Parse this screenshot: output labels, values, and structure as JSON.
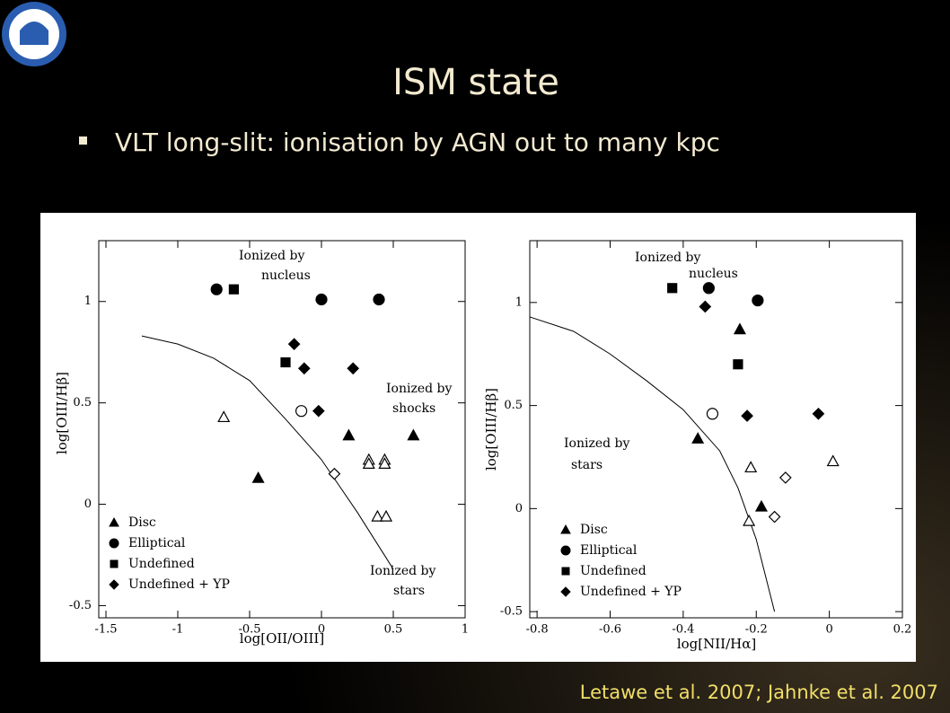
{
  "slide": {
    "title": "ISM state",
    "bullet": "VLT long-slit: ionisation by AGN out to many kpc",
    "citation": "Letawe et al. 2007; Jahnke et al. 2007"
  },
  "chart_data": [
    {
      "type": "scatter",
      "xlabel": "log[OII/OIII]",
      "ylabel": "log[OIII/Hβ]",
      "xlim": [
        -1.55,
        1.0
      ],
      "ylim": [
        -0.56,
        1.3
      ],
      "xticks": [
        -1.5,
        -1,
        -0.5,
        0,
        0.5,
        1
      ],
      "yticks": [
        -0.5,
        0,
        0.5,
        1
      ],
      "annotations": [
        "Ionized by",
        "nucleus",
        "Ionized by",
        "shocks",
        "Ionized by",
        "stars"
      ],
      "curve": {
        "x": [
          -1.25,
          -1.0,
          -0.75,
          -0.5,
          -0.25,
          0,
          0.25,
          0.5
        ],
        "y": [
          0.83,
          0.79,
          0.72,
          0.61,
          0.42,
          0.22,
          -0.04,
          -0.32
        ]
      },
      "series": [
        {
          "name": "Disc",
          "marker": "triangle",
          "filled": true,
          "color": "#000000",
          "x": [
            -0.44,
            0.19,
            0.64
          ],
          "values": [
            0.13,
            0.34,
            0.34
          ]
        },
        {
          "name": "Elliptical",
          "marker": "circle",
          "filled": true,
          "color": "#000000",
          "x": [
            -0.73,
            0.0,
            0.4
          ],
          "values": [
            1.06,
            1.01,
            1.01
          ]
        },
        {
          "name": "Undefined",
          "marker": "square",
          "filled": true,
          "color": "#000000",
          "x": [
            -0.61,
            -0.25
          ],
          "values": [
            1.06,
            0.7
          ]
        },
        {
          "name": "Undefined + YP",
          "marker": "diamond",
          "filled": true,
          "color": "#000000",
          "x": [
            -0.19,
            -0.12,
            0.22,
            -0.02
          ],
          "values": [
            0.79,
            0.67,
            0.67,
            0.46
          ]
        },
        {
          "marker": "triangle",
          "filled": false,
          "color": "#000000",
          "x": [
            -0.68,
            0.33,
            0.44,
            0.33,
            0.44,
            0.39,
            0.45
          ],
          "values": [
            0.43,
            0.22,
            0.22,
            0.2,
            0.2,
            -0.06,
            -0.06
          ]
        },
        {
          "marker": "circle",
          "filled": false,
          "color": "#000000",
          "x": [
            -0.14
          ],
          "values": [
            0.46
          ]
        },
        {
          "marker": "diamond",
          "filled": false,
          "color": "#000000",
          "x": [
            0.09
          ],
          "values": [
            0.15
          ]
        }
      ]
    },
    {
      "type": "scatter",
      "xlabel": "log[NII/Hα]",
      "ylabel": "log[OIII/Hβ]",
      "xlim": [
        -0.82,
        0.2
      ],
      "ylim": [
        -0.53,
        1.3
      ],
      "xticks": [
        -0.8,
        -0.6,
        -0.4,
        -0.2,
        0,
        0.2
      ],
      "yticks": [
        -0.5,
        0,
        0.5,
        1
      ],
      "annotations": [
        "Ionized by",
        "nucleus",
        "Ionized by",
        "stars"
      ],
      "curve": {
        "x": [
          -0.82,
          -0.7,
          -0.6,
          -0.5,
          -0.4,
          -0.3,
          -0.25,
          -0.2,
          -0.15
        ],
        "y": [
          0.93,
          0.86,
          0.75,
          0.62,
          0.48,
          0.28,
          0.1,
          -0.15,
          -0.5
        ]
      },
      "series": [
        {
          "name": "Disc",
          "marker": "triangle",
          "filled": true,
          "color": "#000000",
          "x": [
            -0.36,
            -0.245,
            -0.186
          ],
          "values": [
            0.34,
            0.87,
            0.01
          ]
        },
        {
          "name": "Elliptical",
          "marker": "circle",
          "filled": true,
          "color": "#000000",
          "x": [
            -0.33,
            -0.196
          ],
          "values": [
            1.07,
            1.01
          ]
        },
        {
          "name": "Undefined",
          "marker": "square",
          "filled": true,
          "color": "#000000",
          "x": [
            -0.43,
            -0.25
          ],
          "values": [
            1.07,
            0.7
          ]
        },
        {
          "name": "Undefined + YP",
          "marker": "diamond",
          "filled": true,
          "color": "#000000",
          "x": [
            -0.34,
            -0.225,
            -0.03
          ],
          "values": [
            0.98,
            0.45,
            0.46
          ]
        },
        {
          "marker": "circle",
          "filled": false,
          "color": "#000000",
          "x": [
            -0.32
          ],
          "values": [
            0.46
          ]
        },
        {
          "marker": "triangle",
          "filled": false,
          "color": "#000000",
          "x": [
            -0.215,
            0.01,
            -0.22
          ],
          "values": [
            0.2,
            0.23,
            -0.06
          ]
        },
        {
          "marker": "diamond",
          "filled": false,
          "color": "#000000",
          "x": [
            -0.12,
            -0.15
          ],
          "values": [
            0.15,
            -0.04
          ]
        }
      ]
    }
  ]
}
